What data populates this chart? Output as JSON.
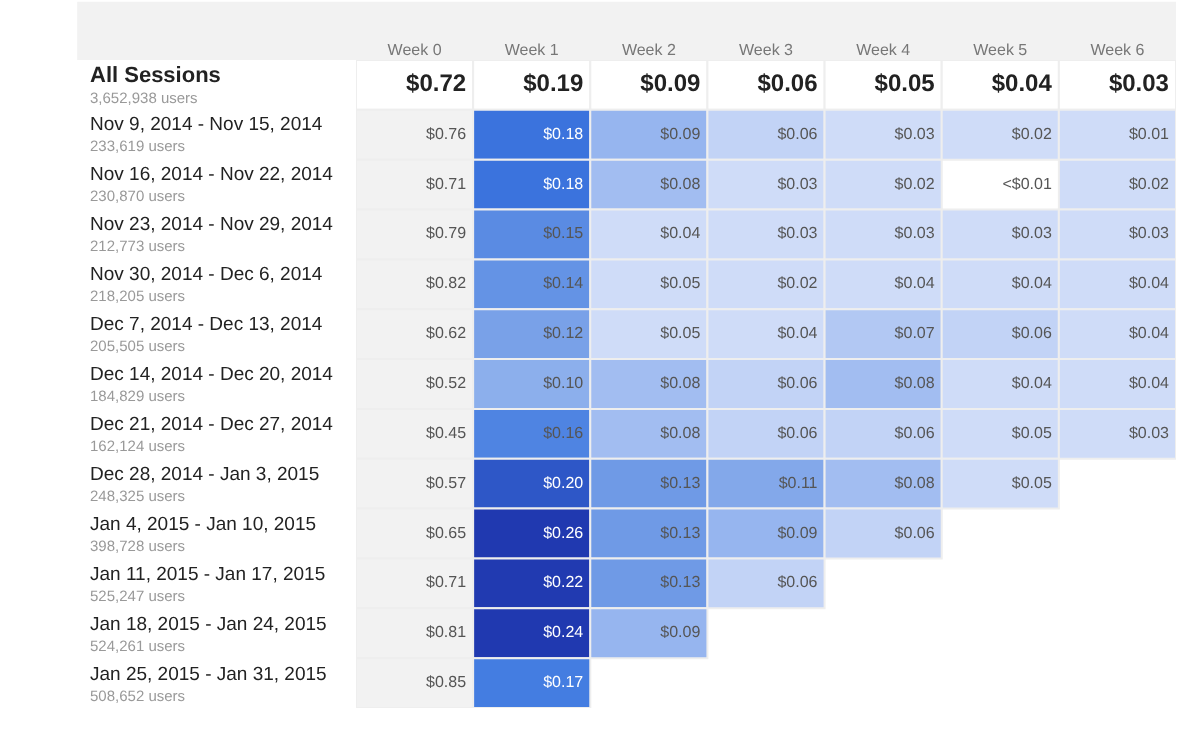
{
  "chart_data": {
    "type": "heatmap",
    "categories": [
      "Week 0",
      "Week 1",
      "Week 2",
      "Week 3",
      "Week 4",
      "Week 5",
      "Week 6"
    ],
    "y_categories": [
      "All Sessions\n3,652,938 users",
      "Nov 9, 2014 - Nov 15, 2014\n233,619 users",
      "Nov 16, 2014 - Nov 22, 2014\n230,870 users",
      "Nov 23, 2014 - Nov 29, 2014\n212,773 users",
      "Nov 30, 2014 - Dec 6, 2014\n218,205 users",
      "Dec 7, 2014 - Dec 13, 2014\n205,505 users",
      "Dec 14, 2014 - Dec 20, 2014\n184,829 users",
      "Dec 21, 2014 - Dec 27, 2014\n162,124 users",
      "Dec 28, 2014 - Jan 3, 2015\n248,325 users",
      "Jan 4, 2015 - Jan 10, 2015\n398,728 users",
      "Jan 11, 2015 - Jan 17, 2015\n525,247 users",
      "Jan 18, 2015 - Jan 24, 2015\n524,261 users",
      "Jan 25, 2015 - Jan 31, 2015\n508,652 users"
    ],
    "cells": [
      [
        0.72,
        0.19,
        0.09,
        0.06,
        0.05,
        0.04,
        0.03
      ],
      [
        0.76,
        0.18,
        0.09,
        0.06,
        0.03,
        0.02,
        0.01
      ],
      [
        0.71,
        0.18,
        0.08,
        0.03,
        0.02,
        null,
        0.02
      ],
      [
        0.79,
        0.15,
        0.04,
        0.03,
        0.03,
        0.03,
        0.03
      ],
      [
        0.82,
        0.14,
        0.05,
        0.02,
        0.04,
        0.04,
        0.04
      ],
      [
        0.62,
        0.12,
        0.05,
        0.04,
        0.07,
        0.06,
        0.04
      ],
      [
        0.52,
        0.1,
        0.08,
        0.06,
        0.08,
        0.04,
        0.04
      ],
      [
        0.45,
        0.16,
        0.08,
        0.06,
        0.06,
        0.05,
        0.03
      ],
      [
        0.57,
        0.2,
        0.13,
        0.11,
        0.08,
        0.05,
        null
      ],
      [
        0.65,
        0.26,
        0.13,
        0.09,
        0.06,
        null,
        null
      ],
      [
        0.71,
        0.22,
        0.13,
        0.06,
        null,
        null,
        null
      ],
      [
        0.81,
        0.24,
        0.09,
        null,
        null,
        null,
        null
      ],
      [
        0.85,
        0.17,
        null,
        null,
        null,
        null,
        null
      ]
    ],
    "cell_labels": [
      [
        "$0.72",
        "$0.19",
        "$0.09",
        "$0.06",
        "$0.05",
        "$0.04",
        "$0.03"
      ],
      [
        "$0.76",
        "$0.18",
        "$0.09",
        "$0.06",
        "$0.03",
        "$0.02",
        "$0.01"
      ],
      [
        "$0.71",
        "$0.18",
        "$0.08",
        "$0.03",
        "$0.02",
        "<$0.01",
        "$0.02"
      ],
      [
        "$0.79",
        "$0.15",
        "$0.04",
        "$0.03",
        "$0.03",
        "$0.03",
        "$0.03"
      ],
      [
        "$0.82",
        "$0.14",
        "$0.05",
        "$0.02",
        "$0.04",
        "$0.04",
        "$0.04"
      ],
      [
        "$0.62",
        "$0.12",
        "$0.05",
        "$0.04",
        "$0.07",
        "$0.06",
        "$0.04"
      ],
      [
        "$0.52",
        "$0.10",
        "$0.08",
        "$0.06",
        "$0.08",
        "$0.04",
        "$0.04"
      ],
      [
        "$0.45",
        "$0.16",
        "$0.08",
        "$0.06",
        "$0.06",
        "$0.05",
        "$0.03"
      ],
      [
        "$0.57",
        "$0.20",
        "$0.13",
        "$0.11",
        "$0.08",
        "$0.05",
        null
      ],
      [
        "$0.65",
        "$0.26",
        "$0.13",
        "$0.09",
        "$0.06",
        null,
        null
      ],
      [
        "$0.71",
        "$0.22",
        "$0.13",
        "$0.06",
        null,
        null,
        null
      ],
      [
        "$0.81",
        "$0.24",
        "$0.09",
        null,
        null,
        null,
        null
      ],
      [
        "$0.85",
        "$0.17",
        null,
        null,
        null,
        null,
        null
      ]
    ]
  }
}
